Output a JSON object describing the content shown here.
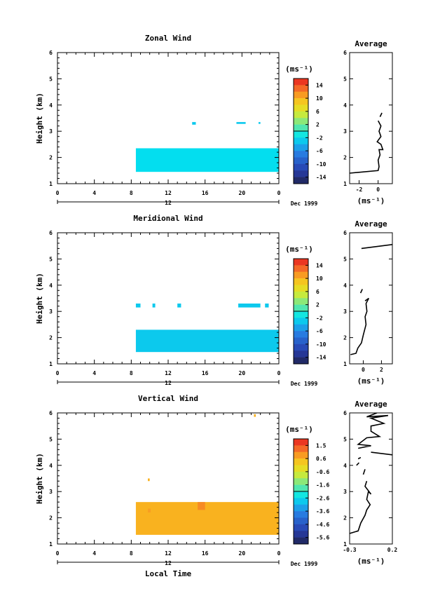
{
  "chart_data": [
    {
      "type": "heatmap",
      "title": "Zonal Wind",
      "ylabel": "Height (km)",
      "ylim": [
        1,
        6
      ],
      "yticks": [
        "1",
        "2",
        "3",
        "4",
        "5",
        "6"
      ],
      "xlim": [
        0,
        24
      ],
      "xticks": [
        "0",
        "4",
        "8",
        "12",
        "16",
        "20",
        "0"
      ],
      "date_axis_label": "12",
      "date_label": "Dec 1999",
      "colorbar": {
        "unit": "(ms⁻¹)",
        "ticks": [
          "14",
          "10",
          "6",
          "2",
          "-2",
          "-6",
          "-10",
          "-14"
        ],
        "range": [
          -16,
          16
        ]
      },
      "cells": [
        {
          "x0": 8.5,
          "x1": 24,
          "y0": 1.45,
          "y1": 2.35,
          "v": -2
        },
        {
          "x0": 14.6,
          "x1": 15,
          "y0": 3.25,
          "y1": 3.35,
          "v": -3
        },
        {
          "x0": 19.4,
          "x1": 20.4,
          "y0": 3.28,
          "y1": 3.35,
          "v": -3
        },
        {
          "x0": 21.8,
          "x1": 22,
          "y0": 3.28,
          "y1": 3.35,
          "v": -3
        }
      ],
      "average": {
        "title": "Average",
        "xlabel": "(ms⁻¹)",
        "xlim": [
          -3,
          1.5
        ],
        "xticks": [
          "-2",
          "0"
        ],
        "ylim": [
          1,
          6
        ],
        "yticks": [
          "1",
          "2",
          "3",
          "4",
          "5",
          "6"
        ],
        "segments": [
          [
            [
              -3,
              1.4
            ],
            [
              0,
              1.5
            ],
            [
              0.1,
              1.65
            ],
            [
              0,
              1.9
            ],
            [
              0.2,
              2.1
            ],
            [
              0.1,
              2.3
            ],
            [
              0.5,
              2.3
            ],
            [
              0.3,
              2.5
            ],
            [
              -0.1,
              2.6
            ],
            [
              0.3,
              2.8
            ],
            [
              0.1,
              3.0
            ],
            [
              0.3,
              3.2
            ],
            [
              0,
              3.4
            ]
          ],
          [
            [
              0.2,
              3.55
            ],
            [
              0.4,
              3.7
            ]
          ],
          [
            [
              -0.2,
              6.0
            ],
            [
              0.1,
              6.1
            ]
          ],
          [
            [
              0.7,
              6.8
            ],
            [
              0.9,
              6.5
            ],
            [
              1.5,
              6.3
            ]
          ]
        ]
      }
    },
    {
      "type": "heatmap",
      "title": "Meridional Wind",
      "ylabel": "Height (km)",
      "ylim": [
        1,
        6
      ],
      "yticks": [
        "1",
        "2",
        "3",
        "4",
        "5",
        "6"
      ],
      "xlim": [
        0,
        24
      ],
      "xticks": [
        "0",
        "4",
        "8",
        "12",
        "16",
        "20",
        "0"
      ],
      "date_axis_label": "12",
      "date_label": "Dec 1999",
      "colorbar": {
        "unit": "(ms⁻¹)",
        "ticks": [
          "14",
          "10",
          "6",
          "2",
          "-2",
          "-6",
          "-10",
          "-14"
        ],
        "range": [
          -16,
          16
        ]
      },
      "cells": [
        {
          "x0": 8.5,
          "x1": 24,
          "y0": 1.45,
          "y1": 2.3,
          "v": -3
        },
        {
          "x0": 8.5,
          "x1": 9,
          "y0": 3.15,
          "y1": 3.3,
          "v": -3
        },
        {
          "x0": 10.3,
          "x1": 10.6,
          "y0": 3.15,
          "y1": 3.3,
          "v": -3
        },
        {
          "x0": 13.0,
          "x1": 13.4,
          "y0": 3.15,
          "y1": 3.3,
          "v": -3
        },
        {
          "x0": 19.6,
          "x1": 22.0,
          "y0": 3.15,
          "y1": 3.3,
          "v": -3
        },
        {
          "x0": 22.5,
          "x1": 22.9,
          "y0": 3.15,
          "y1": 3.3,
          "v": -3
        }
      ],
      "average": {
        "title": "Average",
        "xlabel": "(ms⁻¹)",
        "xlim": [
          -1.5,
          3.2
        ],
        "xticks": [
          "0",
          "2"
        ],
        "ylim": [
          1,
          6
        ],
        "yticks": [
          "1",
          "2",
          "3",
          "4",
          "5",
          "6"
        ],
        "segments": [
          [
            [
              -1.4,
              1.35
            ],
            [
              -0.8,
              1.4
            ],
            [
              -0.6,
              1.6
            ],
            [
              -0.2,
              1.8
            ],
            [
              0,
              2.1
            ],
            [
              0.3,
              2.5
            ],
            [
              0.2,
              2.8
            ],
            [
              0.4,
              3.0
            ],
            [
              0.3,
              3.3
            ],
            [
              0.6,
              3.5
            ],
            [
              0.2,
              3.4
            ]
          ],
          [
            [
              -0.3,
              3.7
            ],
            [
              -0.1,
              3.85
            ]
          ],
          [
            [
              -0.2,
              5.4
            ],
            [
              3.2,
              5.55
            ]
          ]
        ]
      }
    },
    {
      "type": "heatmap",
      "title": "Vertical Wind",
      "xlabel": "Local Time",
      "ylabel": "Height (km)",
      "ylim": [
        1,
        6
      ],
      "yticks": [
        "1",
        "2",
        "3",
        "4",
        "5",
        "6"
      ],
      "xlim": [
        0,
        24
      ],
      "xticks": [
        "0",
        "4",
        "8",
        "12",
        "16",
        "20",
        "0"
      ],
      "date_axis_label": "12",
      "date_label": "Dec 1999",
      "colorbar": {
        "unit": "(ms⁻¹)",
        "ticks": [
          "1.5",
          "0.6",
          "-0.6",
          "-1.6",
          "-2.6",
          "-3.6",
          "-4.6",
          "-5.6"
        ],
        "range": [
          -6.1,
          2.0
        ]
      },
      "cells": [
        {
          "x0": 8.5,
          "x1": 24,
          "y0": 1.35,
          "y1": 2.6,
          "v": 0.5
        },
        {
          "x0": 9.8,
          "x1": 10.1,
          "y0": 2.2,
          "y1": 2.35,
          "v": 0.7
        },
        {
          "x0": 15.2,
          "x1": 16.0,
          "y0": 2.3,
          "y1": 2.6,
          "v": 0.9
        },
        {
          "x0": 21.3,
          "x1": 21.5,
          "y0": 5.85,
          "y1": 5.95,
          "v": 0.5
        },
        {
          "x0": 9.8,
          "x1": 10.0,
          "y0": 3.4,
          "y1": 3.5,
          "v": 0.5
        }
      ],
      "average": {
        "title": "Average",
        "xlabel": "(ms⁻¹)",
        "xlim": [
          -0.3,
          0.2
        ],
        "xticks": [
          "-0.3",
          "0.2"
        ],
        "ylim": [
          1,
          6
        ],
        "yticks": [
          "1",
          "2",
          "3",
          "4",
          "5",
          "6"
        ],
        "segments": [
          [
            [
              -0.3,
              1.4
            ],
            [
              -0.2,
              1.5
            ],
            [
              -0.17,
              1.8
            ],
            [
              -0.12,
              2.1
            ],
            [
              -0.1,
              2.3
            ],
            [
              -0.06,
              2.5
            ],
            [
              -0.1,
              2.7
            ],
            [
              -0.08,
              3.0
            ],
            [
              -0.05,
              2.9
            ],
            [
              -0.12,
              3.2
            ],
            [
              -0.1,
              3.4
            ]
          ],
          [
            [
              -0.14,
              3.65
            ],
            [
              -0.12,
              3.85
            ]
          ],
          [
            [
              -0.2,
              4.25
            ],
            [
              -0.17,
              4.3
            ]
          ],
          [
            [
              -0.22,
              4.0
            ],
            [
              -0.19,
              4.1
            ]
          ],
          [
            [
              -0.05,
              4.5
            ],
            [
              0.2,
              4.4
            ]
          ],
          [
            [
              -0.2,
              4.65
            ],
            [
              -0.05,
              4.75
            ],
            [
              -0.2,
              4.8
            ],
            [
              -0.1,
              5.05
            ],
            [
              0.05,
              5.1
            ],
            [
              -0.05,
              5.3
            ],
            [
              -0.05,
              5.5
            ],
            [
              0.1,
              5.6
            ],
            [
              -0.05,
              5.8
            ],
            [
              0.15,
              5.9
            ],
            [
              -0.1,
              5.85
            ],
            [
              0.02,
              6.0
            ]
          ]
        ]
      }
    }
  ]
}
